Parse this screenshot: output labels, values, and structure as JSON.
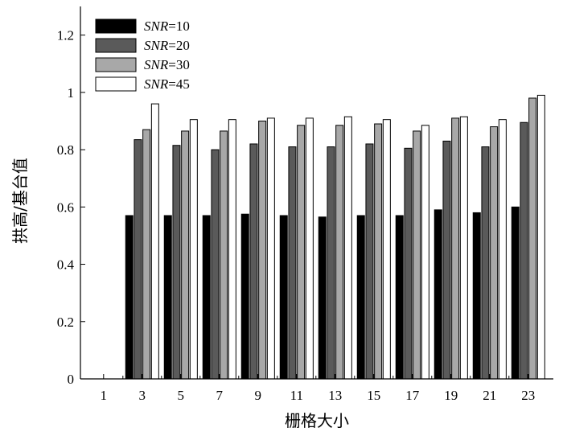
{
  "chart_data": {
    "type": "bar",
    "categories": [
      "1",
      "3",
      "5",
      "7",
      "9",
      "11",
      "13",
      "15",
      "17",
      "19",
      "21",
      "23"
    ],
    "series": [
      {
        "name": "SNR=10",
        "color": "#000000",
        "values": [
          null,
          0.57,
          0.57,
          0.57,
          0.575,
          0.57,
          0.565,
          0.57,
          0.57,
          0.59,
          0.58,
          0.6
        ]
      },
      {
        "name": "SNR=20",
        "color": "#5a5a5a",
        "values": [
          null,
          0.835,
          0.815,
          0.8,
          0.82,
          0.81,
          0.81,
          0.82,
          0.805,
          0.83,
          0.81,
          0.895
        ]
      },
      {
        "name": "SNR=30",
        "color": "#a8a8a8",
        "values": [
          null,
          0.87,
          0.865,
          0.865,
          0.9,
          0.885,
          0.885,
          0.89,
          0.865,
          0.91,
          0.88,
          0.98
        ]
      },
      {
        "name": "SNR=45",
        "color": "#ffffff",
        "values": [
          null,
          0.96,
          0.905,
          0.905,
          0.91,
          0.91,
          0.915,
          0.905,
          0.885,
          0.915,
          0.905,
          0.99
        ]
      }
    ],
    "legend_labels": [
      {
        "italic": "SNR",
        "rest": "=10"
      },
      {
        "italic": "SNR",
        "rest": "=20"
      },
      {
        "italic": "SNR",
        "rest": "=30"
      },
      {
        "italic": "SNR",
        "rest": "=45"
      }
    ],
    "xlabel": "栅格大小",
    "ylabel": "拱高/基台值",
    "ylim": [
      0,
      1.3
    ],
    "yticks": [
      0,
      0.2,
      0.4,
      0.6,
      0.8,
      1,
      1.2
    ],
    "ytick_labels": [
      "0",
      "0.2",
      "0.4",
      "0.6",
      "0.8",
      "1",
      "1.2"
    ],
    "grid": false,
    "legend_position": "top-left"
  }
}
